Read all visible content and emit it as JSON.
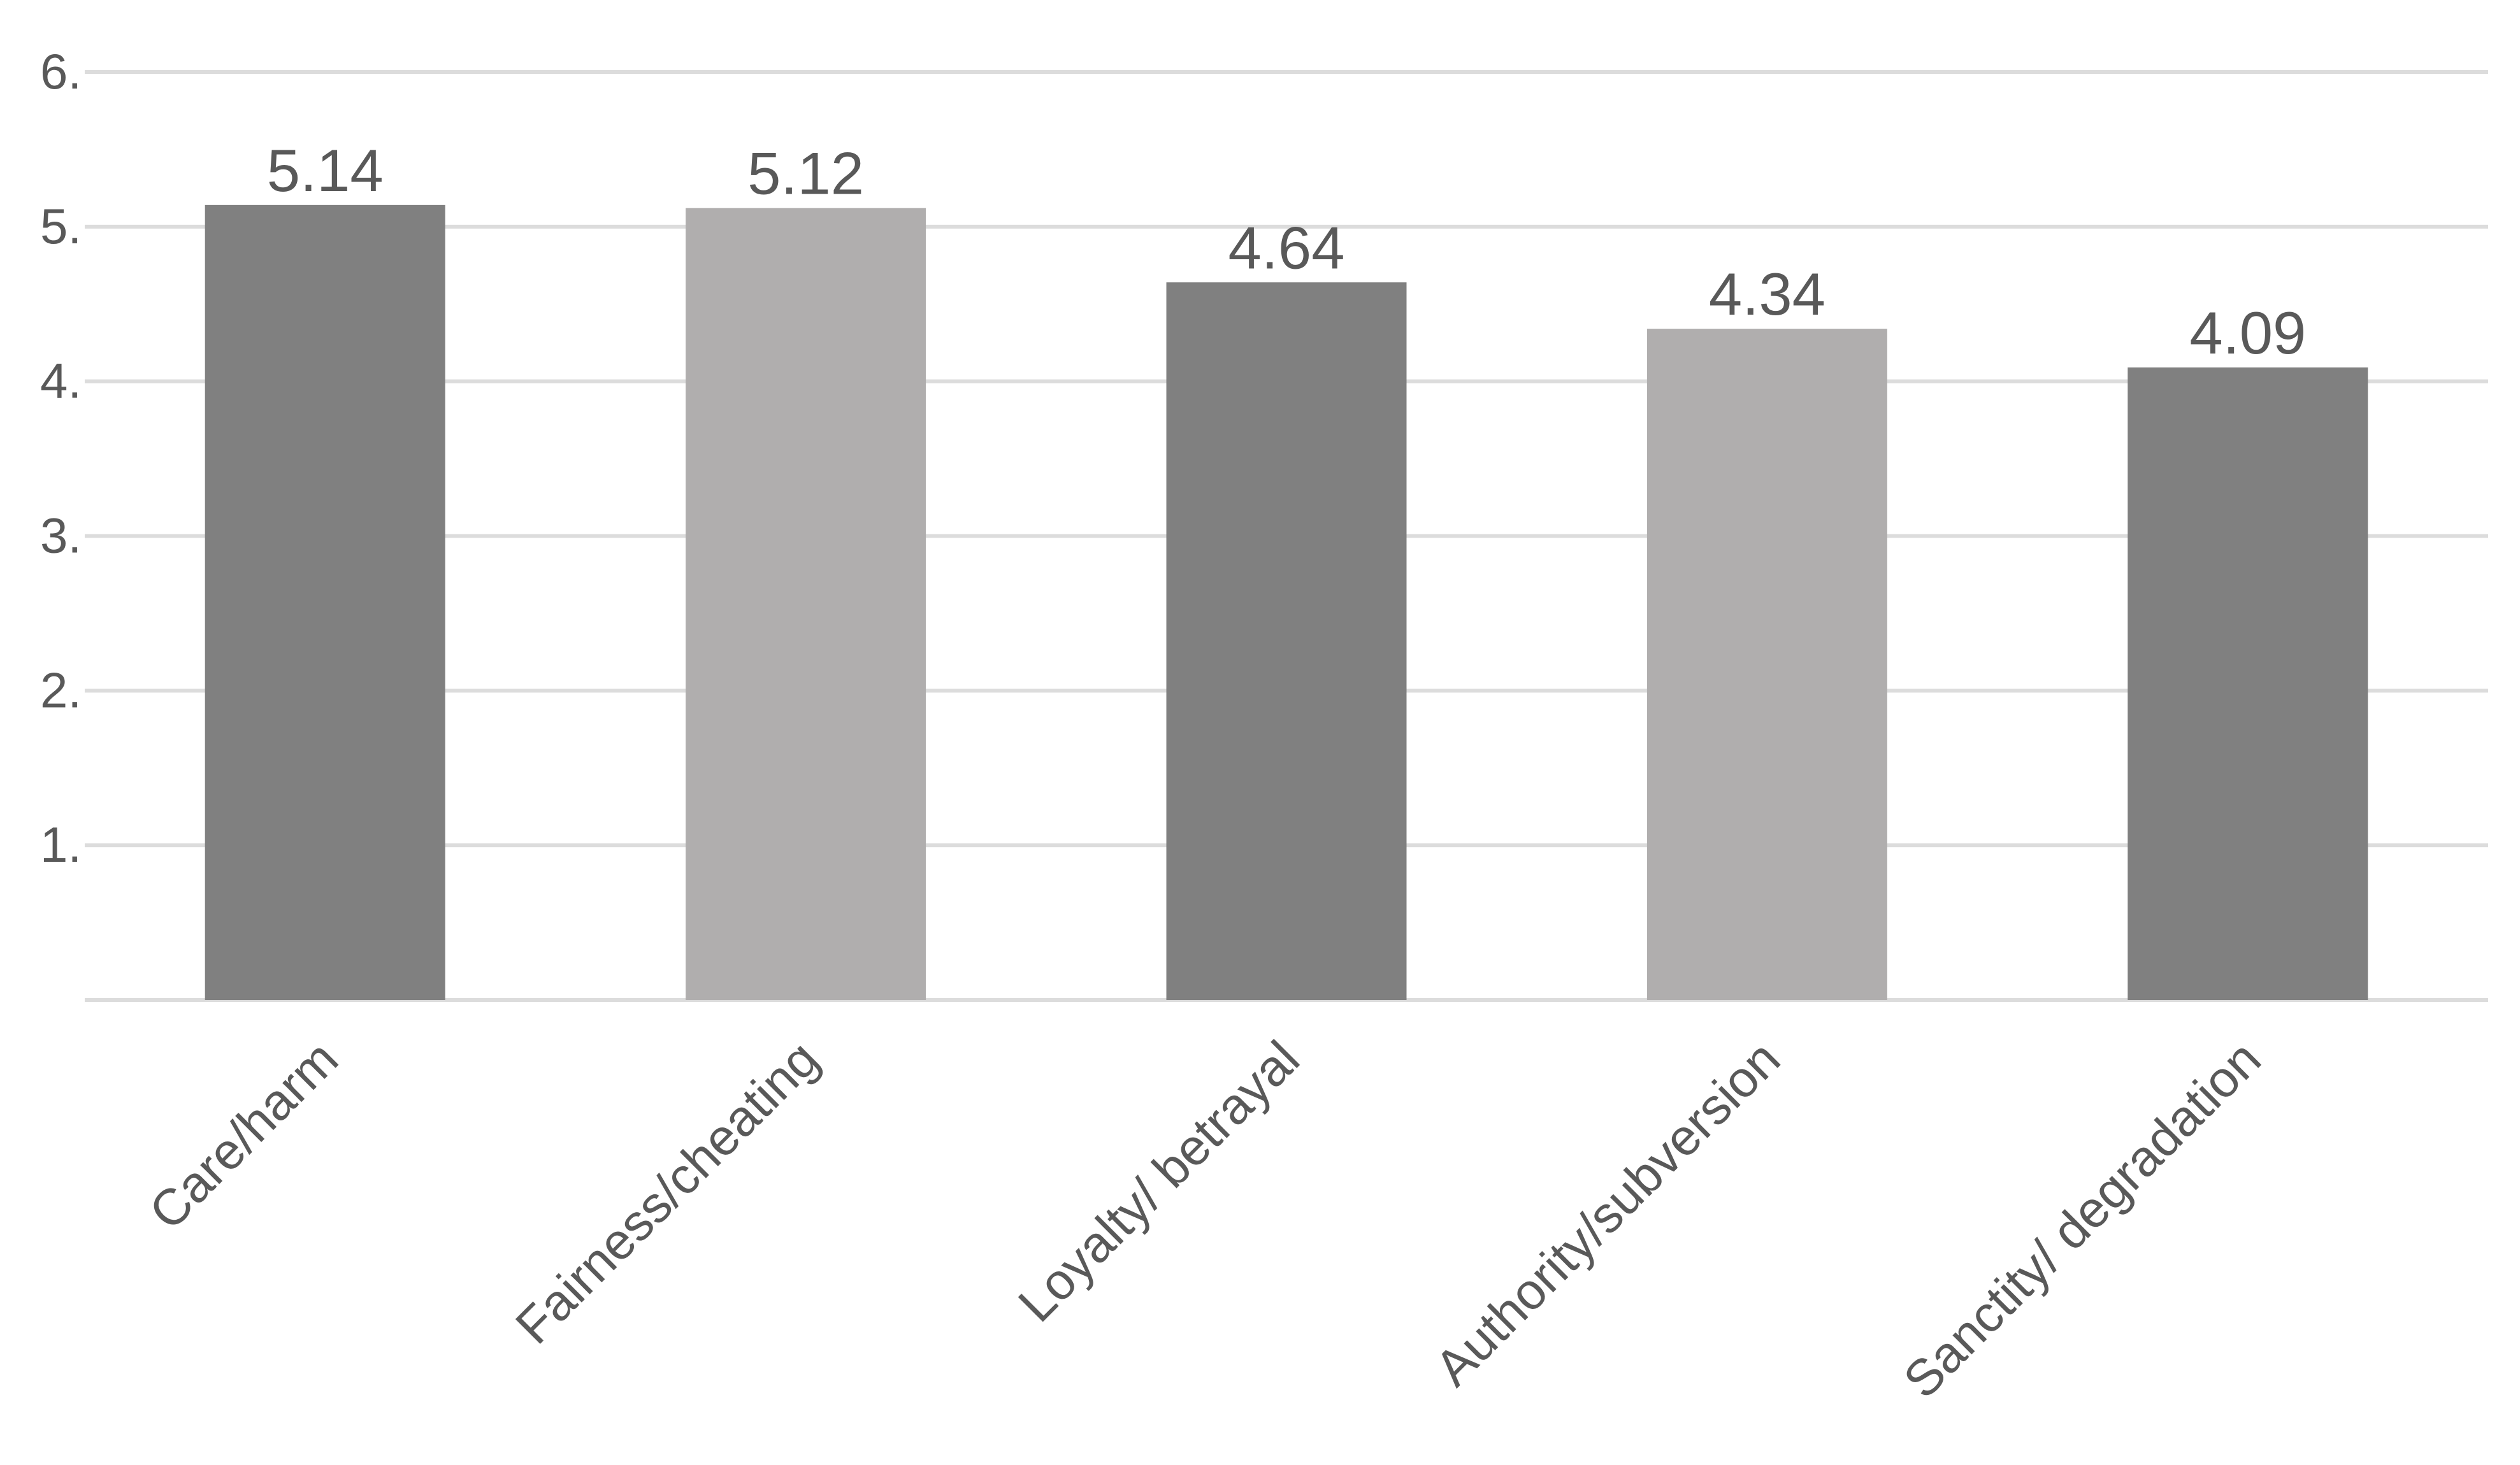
{
  "chart_data": {
    "type": "bar",
    "title": "",
    "xlabel": "",
    "ylabel": "",
    "categories": [
      "Care/harm",
      "Fairness/cheating",
      "Loyalty/ betrayal",
      "Authority/subversion",
      "Sanctity/ degradation"
    ],
    "values": [
      5.14,
      5.12,
      4.64,
      4.34,
      4.09
    ],
    "data_labels": [
      "5.14",
      "5.12",
      "4.64",
      "4.34",
      "4.09"
    ],
    "ylim": [
      0,
      6
    ],
    "yticks": [
      1,
      2,
      3,
      4,
      5,
      6
    ],
    "ytick_labels": [
      "1.",
      "2.",
      "3.",
      "4.",
      "5.",
      "6."
    ],
    "grid": true,
    "legend": "none",
    "colors": {
      "bar_dark": "#808080",
      "bar_light": "#b0aeae",
      "gridline": "#dcdcdc",
      "text": "#595959"
    }
  }
}
